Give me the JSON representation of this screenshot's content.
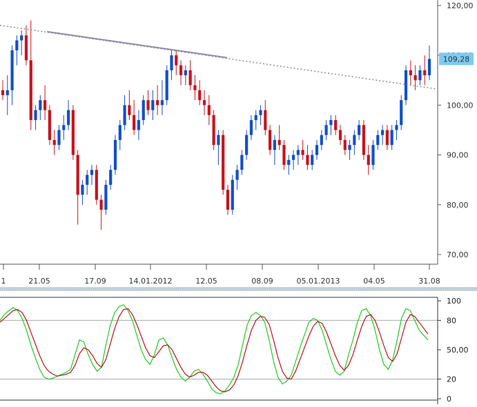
{
  "chart_data": [
    {
      "type": "candlestick",
      "x_tick_labels": [
        "1",
        "21.05",
        "17.09",
        "14.01.2012",
        "12.05",
        "08.09",
        "05.01.2013",
        "04.05",
        "31.08"
      ],
      "y_tick_labels": [
        "120,00",
        "110,00",
        "100,00",
        "90,00",
        "80,00",
        "70,00"
      ],
      "ylim": [
        65,
        120.5
      ],
      "last_price_label": "109,28",
      "last_price": 109.28,
      "trendline": {
        "from": [
          0,
          116
        ],
        "to": [
          66,
          103.5
        ],
        "style": "dotted"
      },
      "trendline_solid_segment": [
        6,
        33
      ],
      "colors": {
        "up": "#1450c8",
        "down": "#c8141e",
        "trendline": "#8d8da6",
        "price_badge": "#7ecbf2"
      },
      "candles": [
        [
          103,
          105,
          101,
          102
        ],
        [
          102,
          106,
          98,
          103
        ],
        [
          103,
          112,
          100,
          111
        ],
        [
          111,
          114,
          108,
          113
        ],
        [
          113,
          115,
          110,
          114
        ],
        [
          114,
          116,
          108,
          109
        ],
        [
          109,
          117,
          95,
          97
        ],
        [
          97,
          100,
          95,
          99
        ],
        [
          99,
          102,
          97,
          101
        ],
        [
          101,
          104,
          97,
          99
        ],
        [
          99,
          100,
          92,
          93
        ],
        [
          93,
          95,
          90,
          92
        ],
        [
          92,
          96,
          91,
          95
        ],
        [
          95,
          98,
          93,
          96
        ],
        [
          96,
          101,
          95,
          99
        ],
        [
          99,
          100,
          89,
          90
        ],
        [
          90,
          91,
          76,
          82
        ],
        [
          82,
          85,
          80,
          84
        ],
        [
          84,
          87,
          82,
          86
        ],
        [
          86,
          88,
          84,
          87
        ],
        [
          87,
          88,
          80,
          81
        ],
        [
          81,
          82,
          75,
          79
        ],
        [
          79,
          85,
          78,
          84
        ],
        [
          84,
          88,
          83,
          87
        ],
        [
          87,
          94,
          86,
          93
        ],
        [
          93,
          97,
          91,
          96
        ],
        [
          96,
          102,
          95,
          100
        ],
        [
          100,
          103,
          97,
          98
        ],
        [
          98,
          101,
          94,
          95
        ],
        [
          95,
          99,
          93,
          97
        ],
        [
          97,
          102,
          96,
          101
        ],
        [
          101,
          103,
          98,
          99
        ],
        [
          99,
          103,
          97,
          101
        ],
        [
          101,
          104,
          98,
          100
        ],
        [
          100,
          105,
          98,
          101
        ],
        [
          101,
          108,
          100,
          107
        ],
        [
          107,
          111,
          105,
          110
        ],
        [
          110,
          111,
          106,
          108
        ],
        [
          108,
          109,
          104,
          106
        ],
        [
          106,
          108,
          104,
          107
        ],
        [
          107,
          109,
          103,
          104
        ],
        [
          104,
          106,
          101,
          103
        ],
        [
          103,
          105,
          100,
          101
        ],
        [
          101,
          103,
          98,
          100
        ],
        [
          100,
          102,
          96,
          98
        ],
        [
          98,
          99,
          91,
          92
        ],
        [
          92,
          95,
          88,
          94
        ],
        [
          94,
          95,
          82,
          83
        ],
        [
          83,
          84,
          78,
          79
        ],
        [
          79,
          86,
          78,
          85
        ],
        [
          85,
          88,
          83,
          87
        ],
        [
          87,
          91,
          86,
          90
        ],
        [
          90,
          95,
          89,
          94
        ],
        [
          94,
          98,
          93,
          97
        ],
        [
          97,
          99,
          95,
          98
        ],
        [
          98,
          100,
          96,
          99
        ],
        [
          99,
          101,
          94,
          95
        ],
        [
          95,
          96,
          90,
          91
        ],
        [
          91,
          94,
          88,
          93
        ],
        [
          93,
          96,
          91,
          92
        ],
        [
          92,
          93,
          87,
          88
        ],
        [
          88,
          90,
          86,
          89
        ],
        [
          89,
          91,
          87,
          90
        ],
        [
          90,
          92,
          88,
          91
        ],
        [
          91,
          93,
          89,
          90
        ],
        [
          90,
          92,
          87,
          88
        ],
        [
          88,
          91,
          87,
          90
        ],
        [
          90,
          93,
          89,
          92
        ],
        [
          92,
          95,
          91,
          94
        ],
        [
          94,
          97,
          93,
          96
        ],
        [
          96,
          98,
          94,
          97
        ],
        [
          97,
          98,
          94,
          95
        ],
        [
          95,
          96,
          92,
          93
        ],
        [
          93,
          94,
          90,
          91
        ],
        [
          91,
          93,
          89,
          92
        ],
        [
          92,
          95,
          90,
          94
        ],
        [
          94,
          97,
          93,
          96
        ],
        [
          96,
          97,
          89,
          90
        ],
        [
          90,
          92,
          86,
          88
        ],
        [
          88,
          93,
          87,
          92
        ],
        [
          92,
          95,
          91,
          94
        ],
        [
          94,
          96,
          92,
          95
        ],
        [
          95,
          96,
          91,
          92
        ],
        [
          92,
          96,
          91,
          95
        ],
        [
          95,
          97,
          93,
          96
        ],
        [
          96,
          102,
          95,
          101
        ],
        [
          101,
          108,
          100,
          107
        ],
        [
          107,
          109,
          104,
          106
        ],
        [
          106,
          108,
          103,
          105
        ],
        [
          105,
          108,
          104,
          107
        ],
        [
          107,
          110,
          104,
          106
        ],
        [
          106,
          112,
          105,
          109.28
        ]
      ]
    },
    {
      "type": "line",
      "subtype": "stochastic-oscillator",
      "y_tick_labels": [
        "100",
        "80",
        "50,00",
        "20",
        "0"
      ],
      "ylim": [
        0,
        100
      ],
      "reference_lines": [
        20,
        80
      ],
      "series": [
        {
          "color": "#22cc22",
          "values": [
            80,
            86,
            90,
            93,
            90,
            82,
            70,
            55,
            42,
            30,
            22,
            20,
            21,
            23,
            25,
            27,
            30,
            45,
            60,
            58,
            45,
            35,
            28,
            32,
            55,
            75,
            88,
            94,
            96,
            90,
            80,
            65,
            50,
            40,
            35,
            45,
            60,
            62,
            55,
            42,
            30,
            22,
            18,
            22,
            28,
            30,
            25,
            18,
            10,
            6,
            5,
            8,
            14,
            22,
            35,
            55,
            75,
            85,
            88,
            85,
            78,
            60,
            38,
            22,
            15,
            18,
            24,
            38,
            52,
            65,
            78,
            82,
            80,
            70,
            55,
            40,
            28,
            24,
            28,
            45,
            60,
            78,
            90,
            92,
            85,
            70,
            50,
            35,
            30,
            40,
            60,
            82,
            92,
            90,
            80,
            70,
            65,
            60
          ]
        },
        {
          "color": "#b8141e",
          "values": [
            78,
            82,
            86,
            90,
            91,
            88,
            80,
            68,
            56,
            44,
            34,
            28,
            25,
            23,
            24,
            25,
            27,
            34,
            46,
            52,
            50,
            44,
            36,
            32,
            40,
            56,
            72,
            84,
            91,
            92,
            86,
            76,
            64,
            52,
            44,
            42,
            48,
            54,
            55,
            50,
            41,
            32,
            25,
            22,
            24,
            27,
            27,
            24,
            18,
            12,
            8,
            7,
            9,
            14,
            24,
            38,
            55,
            70,
            80,
            84,
            83,
            76,
            60,
            42,
            28,
            21,
            20,
            28,
            40,
            52,
            64,
            74,
            79,
            77,
            68,
            56,
            44,
            34,
            29,
            34,
            45,
            60,
            74,
            84,
            86,
            80,
            68,
            54,
            42,
            38,
            46,
            62,
            78,
            86,
            84,
            78,
            72,
            66
          ]
        }
      ]
    }
  ]
}
